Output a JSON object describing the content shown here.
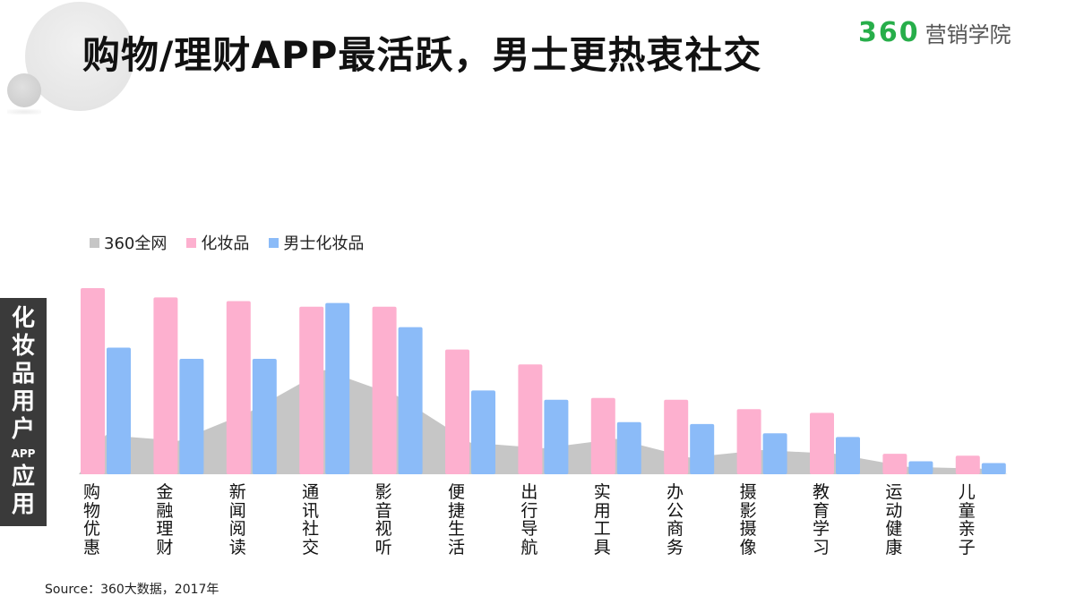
{
  "page": {
    "title": "购物/理财APP最活跃，男士更热衷社交",
    "logo": {
      "number": "360",
      "text": "营销学院",
      "color": "#27ae4a"
    },
    "side_label": {
      "part1": "化妆品用户",
      "part2": "APP",
      "part3": "应用"
    },
    "source": "Source：360大数据，2017年"
  },
  "chart_data": {
    "type": "bar",
    "categories": [
      "购物优惠",
      "金融理财",
      "新闻阅读",
      "通讯社交",
      "影音视听",
      "便捷生活",
      "出行导航",
      "实用工具",
      "办公商务",
      "摄影摄像",
      "教育学习",
      "运动健康",
      "儿童亲子"
    ],
    "series": [
      {
        "name": "360全网",
        "render": "area",
        "color": "#c6c6c6",
        "values": [
          21,
          18,
          34,
          56,
          42,
          17,
          14,
          19,
          9,
          13,
          11,
          4,
          3
        ]
      },
      {
        "name": "化妆品",
        "render": "bar",
        "color": "#fdb0cf",
        "values": [
          100,
          95,
          93,
          90,
          90,
          67,
          59,
          41,
          40,
          35,
          33,
          11,
          10
        ]
      },
      {
        "name": "男士化妆品",
        "render": "bar",
        "color": "#8bbbf8",
        "values": [
          68,
          62,
          62,
          92,
          79,
          45,
          40,
          28,
          27,
          22,
          20,
          7,
          6
        ]
      }
    ],
    "ylim": [
      0,
      100
    ],
    "grid": false,
    "legend_position": "top-left"
  }
}
